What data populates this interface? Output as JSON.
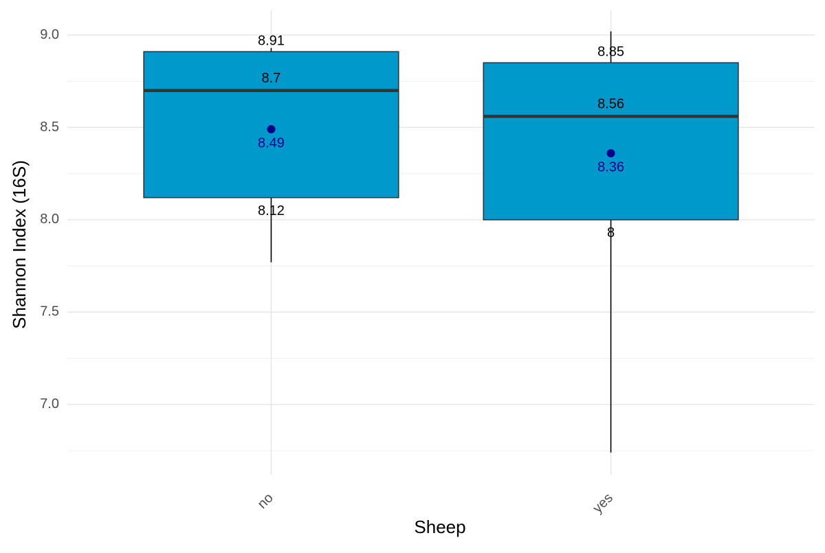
{
  "chart_data": {
    "type": "box",
    "x_label": "Sheep",
    "y_label": "Shannon Index (16S)",
    "categories": [
      "no",
      "yes"
    ],
    "low": [
      7.77,
      6.74
    ],
    "q1": [
      8.12,
      8
    ],
    "median": [
      8.7,
      8.56
    ],
    "q3": [
      8.91,
      8.85
    ],
    "high": [
      8.93,
      9.02
    ],
    "mean": [
      8.49,
      8.36
    ],
    "box_color": "#0099cc",
    "mean_color": "#00008b",
    "ylim": [
      6.62,
      9.134
    ],
    "yticks": [
      {
        "value": 7,
        "label": "7.0"
      },
      7.5,
      {
        "value": 8,
        "label": "8.0"
      },
      8.5,
      {
        "value": 9,
        "label": "9.0"
      }
    ],
    "yminor": [
      6.75,
      7.25,
      7.75,
      8.25,
      8.75
    ],
    "grid": true
  }
}
